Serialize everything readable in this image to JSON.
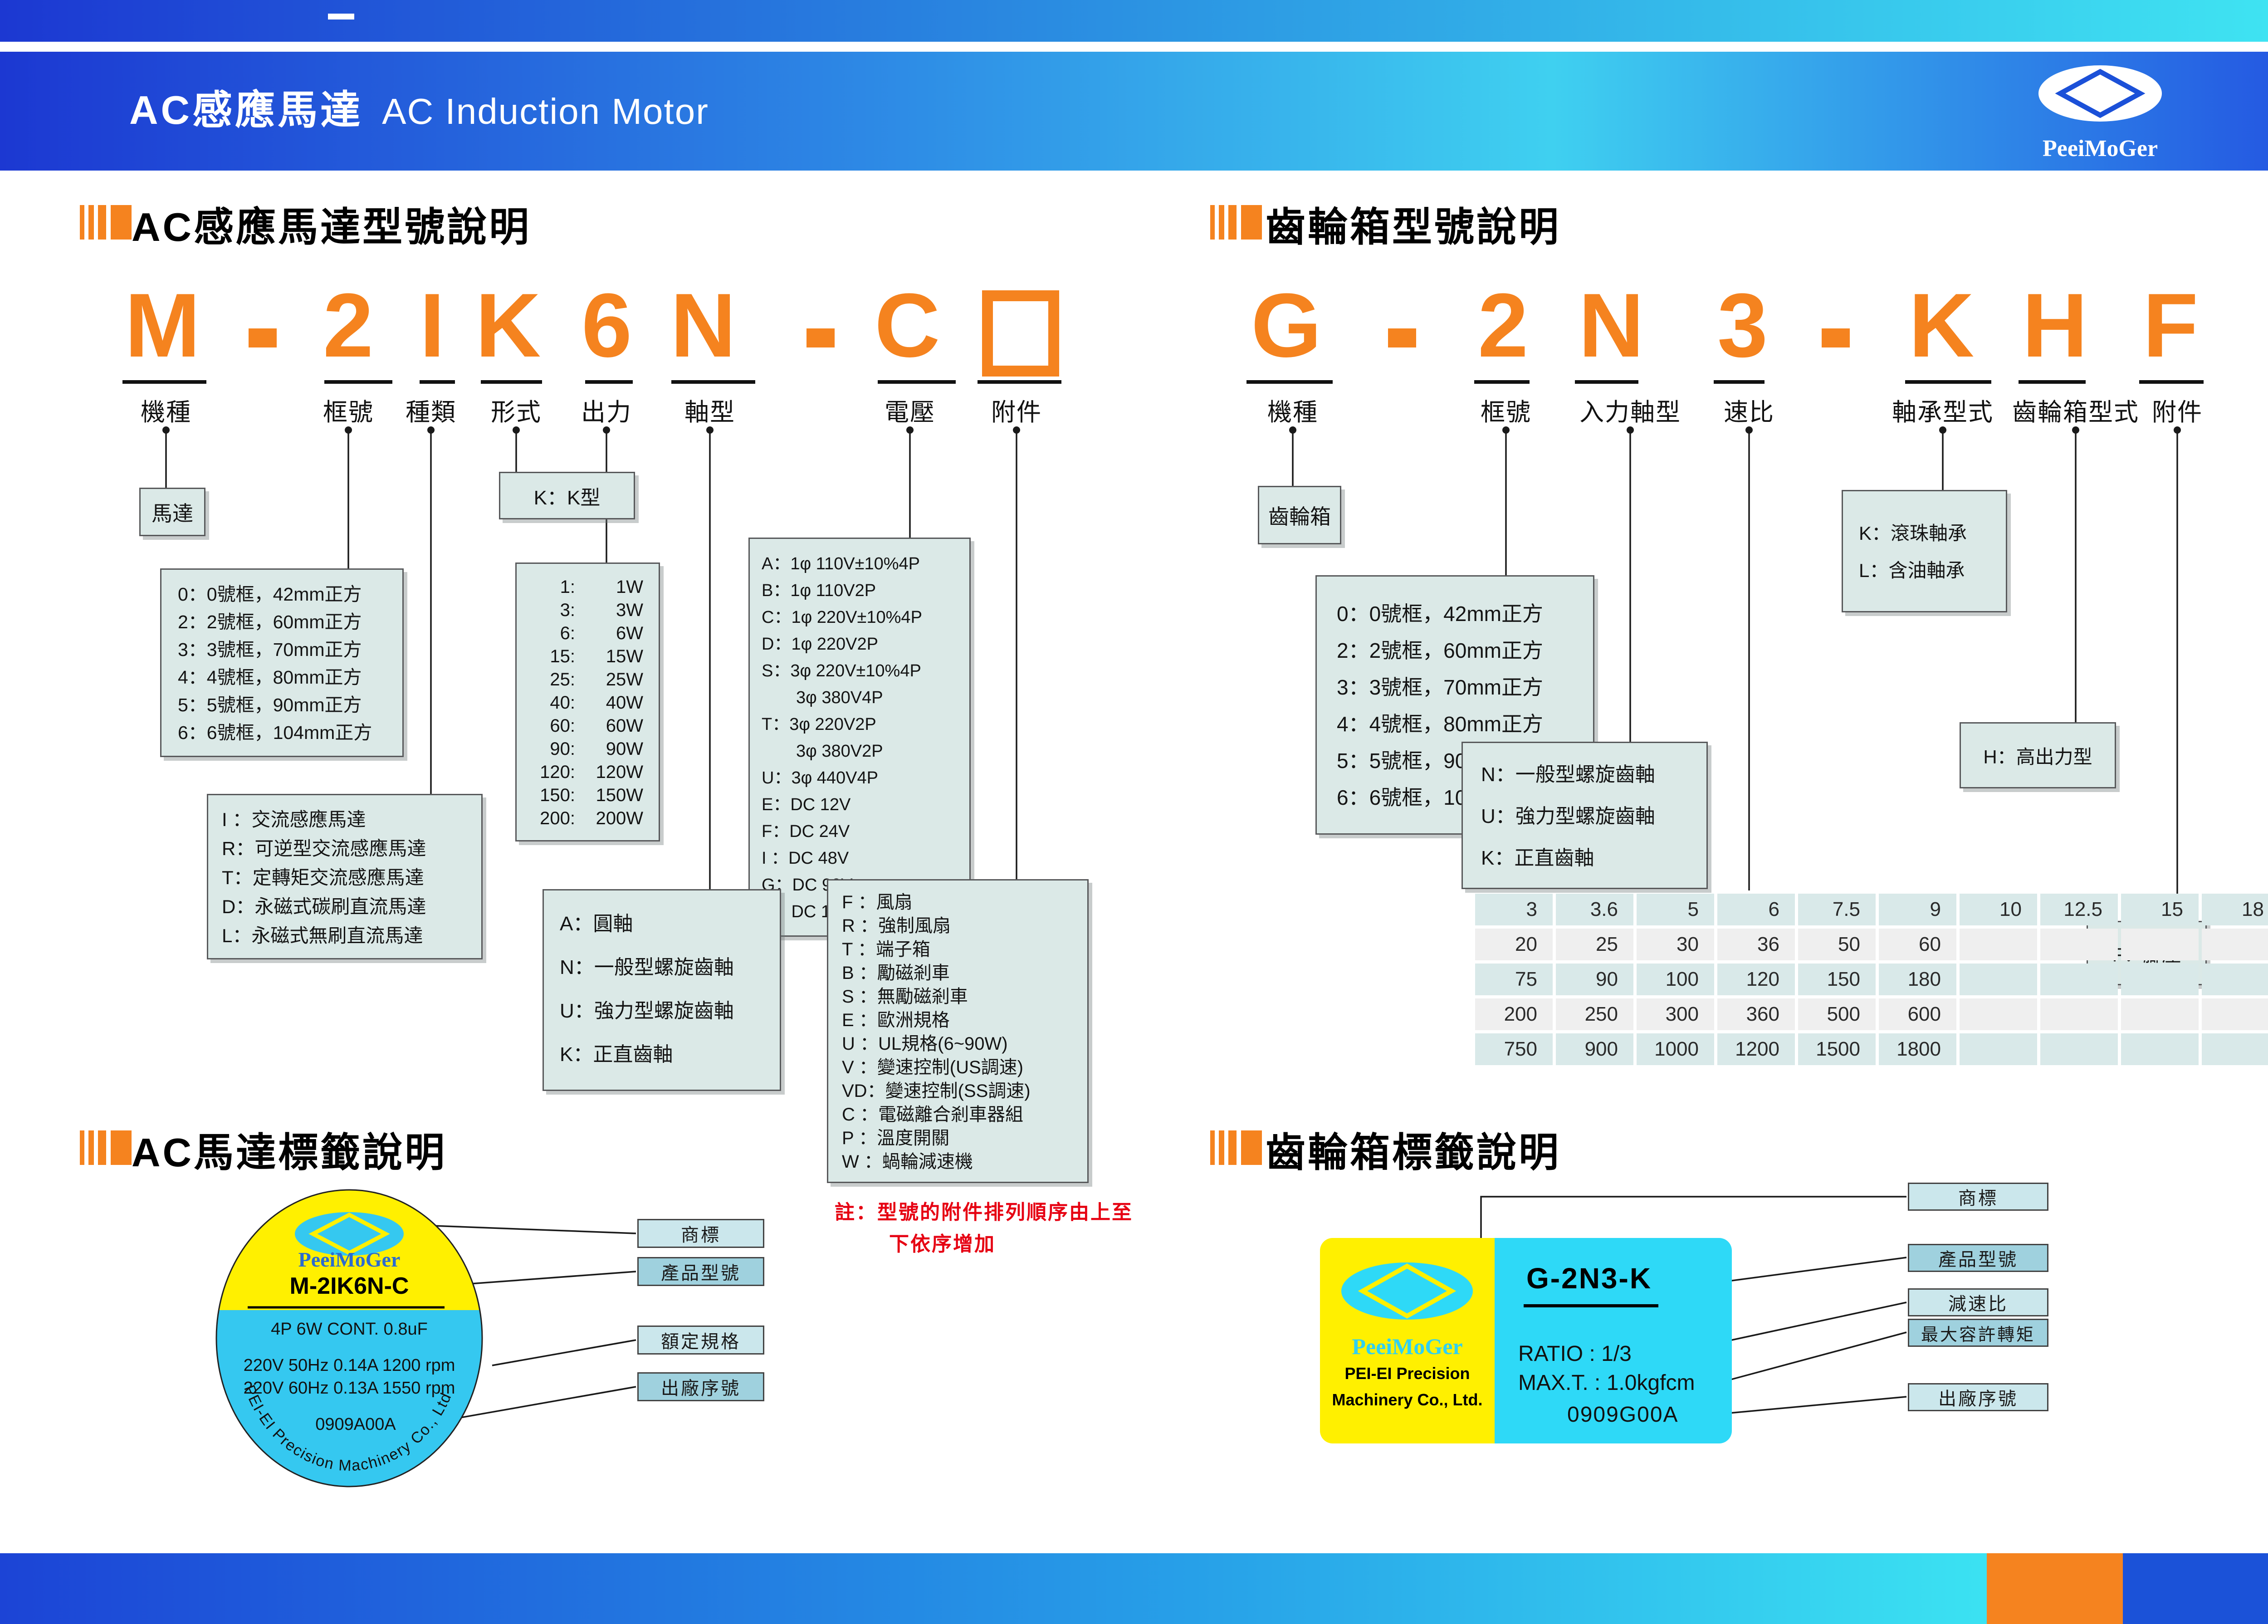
{
  "header": {
    "title_zh": "AC感應馬達",
    "title_en": "AC Induction Motor",
    "brand": "PeeiMoGer"
  },
  "sections": {
    "motor_model": "AC感應馬達型號說明",
    "motor_label": "AC馬達標籤說明",
    "gear_model": "齒輪箱型號說明",
    "gear_label": "齒輪箱標籤說明"
  },
  "motor": {
    "code_parts": [
      {
        "char": "M",
        "label": "機種"
      },
      {
        "char": "-"
      },
      {
        "char": "2",
        "label": "框號"
      },
      {
        "char": "I",
        "label": "種類"
      },
      {
        "char": "K",
        "label": "形式"
      },
      {
        "char": "6",
        "label": "出力"
      },
      {
        "char": "N",
        "label": "軸型"
      },
      {
        "char": "-"
      },
      {
        "char": "C",
        "label": "電壓"
      },
      {
        "char": "□",
        "label": "附件"
      }
    ],
    "boxes": {
      "machine": "馬達",
      "k_type": "K：K型",
      "frame": [
        "0：0號框，42mm正方",
        "2：2號框，60mm正方",
        "3：3號框，70mm正方",
        "4：4號框，80mm正方",
        "5：5號框，90mm正方",
        "6：6號框，104mm正方"
      ],
      "series": [
        "I ：交流感應馬達",
        "R：可逆型交流感應馬達",
        "T：定轉矩交流感應馬達",
        "D：永磁式碳刷直流馬達",
        "L：永磁式無刷直流馬達"
      ],
      "output_pairs": [
        [
          "1:",
          "1W"
        ],
        [
          "3:",
          "3W"
        ],
        [
          "6:",
          "6W"
        ],
        [
          "15:",
          "15W"
        ],
        [
          "25:",
          "25W"
        ],
        [
          "40:",
          "40W"
        ],
        [
          "60:",
          "60W"
        ],
        [
          "90:",
          "90W"
        ],
        [
          "120:",
          "120W"
        ],
        [
          "150:",
          "150W"
        ],
        [
          "200:",
          "200W"
        ]
      ],
      "shaft": [
        "A：圓軸",
        "N：一般型螺旋齒軸",
        "U：強力型螺旋齒軸",
        "K：正直齒軸"
      ],
      "voltage": [
        "A：1φ 110V±10%4P",
        "B：1φ 110V2P",
        "C：1φ 220V±10%4P",
        "D：1φ 220V2P",
        "S：3φ 220V±10%4P",
        "　　3φ 380V4P",
        "T：3φ 220V2P",
        "　　3φ 380V2P",
        "U：3φ 440V4P",
        "E：DC 12V",
        "F：DC 24V",
        "I ：DC 48V",
        "G：DC 90V",
        "H：DC 180V"
      ],
      "accessory": [
        "F ：風扇",
        "R ：強制風扇",
        "T ：端子箱",
        "B ：勵磁剎車",
        "S ：無勵磁剎車",
        "E ：歐洲規格",
        "U ：UL規格(6~90W)",
        "V ：變速控制(US調速)",
        "VD：變速控制(SS調速)",
        "C ：電磁離合剎車器組",
        "P ：溫度開關",
        "W ：蝸輪減速機"
      ],
      "note_line1": "註：型號的附件排列順序由上至",
      "note_line2": "下依序增加"
    },
    "label": {
      "brand": "PeeiMoGer",
      "model": "M-2IK6N-C",
      "spec": "4P 6W CONT. 0.8uF",
      "rating1": "220V 50Hz 0.14A 1200 rpm",
      "rating2": "220V 60Hz 0.13A 1550 rpm",
      "serial": "0909A00A",
      "company": "PEI-EI Precision Machinery Co., Ltd",
      "callouts": [
        "商標",
        "產品型號",
        "額定規格",
        "出廠序號"
      ]
    }
  },
  "gearbox": {
    "code_parts": [
      {
        "char": "G",
        "label": "機種"
      },
      {
        "char": "-"
      },
      {
        "char": "2",
        "label": "框號"
      },
      {
        "char": "N",
        "label": "入力軸型"
      },
      {
        "char": "3",
        "label": "速比"
      },
      {
        "char": "-"
      },
      {
        "char": "K",
        "label": "軸承型式"
      },
      {
        "char": "H",
        "label": "齒輪箱型式"
      },
      {
        "char": "F",
        "label": "附件"
      }
    ],
    "boxes": {
      "machine": "齒輪箱",
      "frame": [
        "0：0號框，42mm正方",
        "2：2號框，60mm正方",
        "3：3號框，70mm正方",
        "4：4號框，80mm正方",
        "5：5號框，90mm正方",
        "6：6號框，104mm正方"
      ],
      "input_shaft": [
        "N：一般型螺旋齒軸",
        "U：強力型螺旋齒軸",
        "K：正直齒軸"
      ],
      "bearing": [
        "K：滾珠軸承",
        "L：含油軸承"
      ],
      "h_type": "H：高出力型",
      "f_type": "F：腳座"
    },
    "ratio_table": {
      "rows": [
        [
          "3",
          "3.6",
          "5",
          "6",
          "7.5",
          "9",
          "10",
          "12.5",
          "15",
          "18"
        ],
        [
          "20",
          "25",
          "30",
          "36",
          "50",
          "60",
          "",
          "",
          "",
          ""
        ],
        [
          "75",
          "90",
          "100",
          "120",
          "150",
          "180",
          "",
          "",
          "",
          ""
        ],
        [
          "200",
          "250",
          "300",
          "360",
          "500",
          "600",
          "",
          "",
          "",
          ""
        ],
        [
          "750",
          "900",
          "1000",
          "1200",
          "1500",
          "1800",
          "",
          "",
          "",
          ""
        ]
      ]
    },
    "label": {
      "brand": "PeeiMoGer",
      "company1": "PEI-EI Precision",
      "company2": "Machinery Co., Ltd.",
      "model": "G-2N3-K",
      "ratio": "RATIO : 1/3",
      "max_t": "MAX.T. : 1.0kgfcm",
      "serial": "0909G00A",
      "callouts": [
        "商標",
        "產品型號",
        "減速比",
        "最大容許轉矩",
        "出廠序號"
      ]
    }
  },
  "colors": {
    "accent": "#F5831F",
    "ink": "#1A1A1A",
    "boxfill": "#DBE9E7",
    "boxline": "#58595B",
    "tag-light": "#CBE7EC",
    "tag-dark": "#9FD1DE",
    "red": "#E60012",
    "yellow": "#FFF000",
    "cyan": "#2ED9F7",
    "label-cyan": "#35C8F0",
    "brand-blue": "#2B6BD0",
    "deep-blue": "#1B52D8"
  }
}
